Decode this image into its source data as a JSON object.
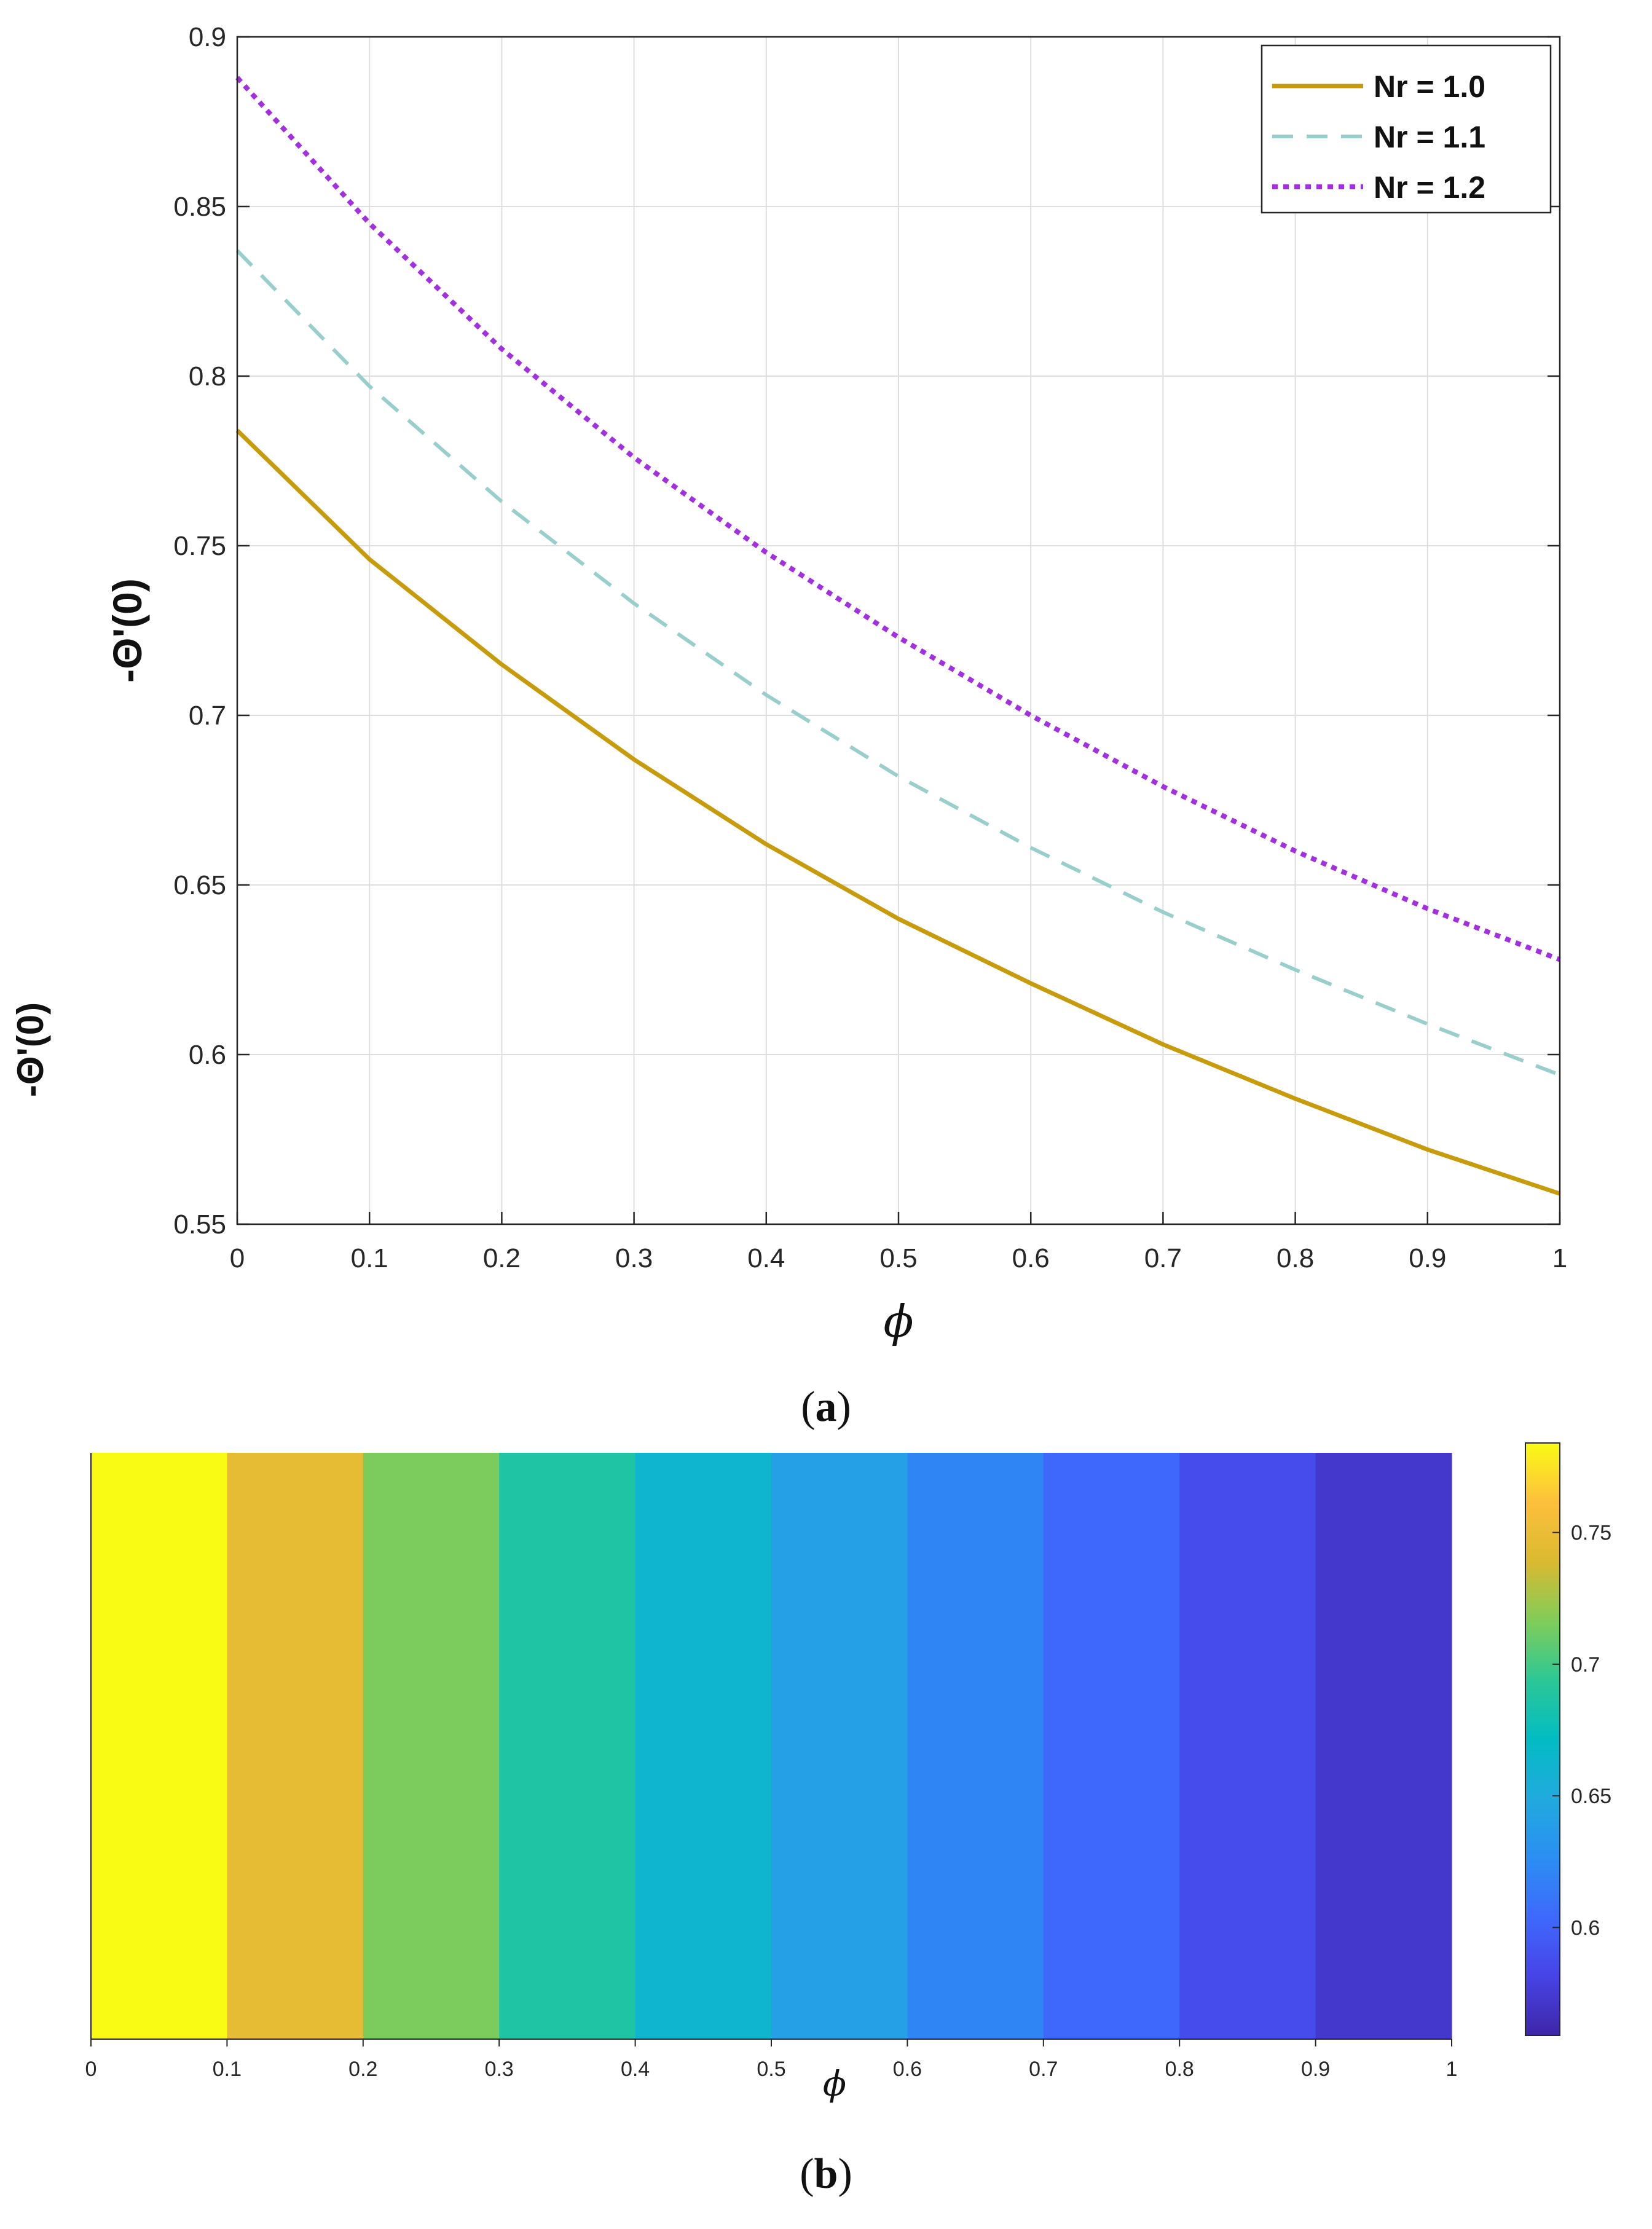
{
  "chart_data": [
    {
      "type": "line",
      "panel_label": "a",
      "xlabel": "ϕ",
      "ylabel": "-Θ'(0)",
      "xlim": [
        0,
        1
      ],
      "ylim": [
        0.55,
        0.9
      ],
      "x_ticks": [
        "0",
        "0.1",
        "0.2",
        "0.3",
        "0.4",
        "0.5",
        "0.6",
        "0.7",
        "0.8",
        "0.9",
        "1"
      ],
      "y_ticks": [
        "0.55",
        "0.6",
        "0.65",
        "0.7",
        "0.75",
        "0.8",
        "0.85",
        "0.9"
      ],
      "grid": true,
      "legend_position": "top-right",
      "x": [
        0,
        0.1,
        0.2,
        0.3,
        0.4,
        0.5,
        0.6,
        0.7,
        0.8,
        0.9,
        1.0
      ],
      "series": [
        {
          "name": "Nr = 1.0",
          "style": "solid",
          "color": "#c89b0c",
          "values": [
            0.784,
            0.746,
            0.715,
            0.687,
            0.662,
            0.64,
            0.621,
            0.603,
            0.587,
            0.572,
            0.559
          ]
        },
        {
          "name": "Nr = 1.1",
          "style": "dashed",
          "color": "#98cfcd",
          "values": [
            0.837,
            0.797,
            0.763,
            0.733,
            0.706,
            0.682,
            0.661,
            0.642,
            0.625,
            0.609,
            0.594
          ]
        },
        {
          "name": "Nr = 1.2",
          "style": "dotted",
          "color": "#a22fe0",
          "values": [
            0.888,
            0.845,
            0.808,
            0.776,
            0.748,
            0.723,
            0.7,
            0.679,
            0.66,
            0.643,
            0.628
          ]
        }
      ]
    },
    {
      "type": "heatmap",
      "panel_label": "b",
      "xlabel": "ϕ",
      "ylabel": "-Θ'(0)",
      "xlim": [
        0,
        1
      ],
      "x_ticks": [
        "0",
        "0.1",
        "0.2",
        "0.3",
        "0.4",
        "0.5",
        "0.6",
        "0.7",
        "0.8",
        "0.9",
        "1"
      ],
      "bands": [
        {
          "x0": 0.0,
          "x1": 0.1,
          "value": 0.784
        },
        {
          "x0": 0.1,
          "x1": 0.2,
          "value": 0.746
        },
        {
          "x0": 0.2,
          "x1": 0.3,
          "value": 0.715
        },
        {
          "x0": 0.3,
          "x1": 0.4,
          "value": 0.687
        },
        {
          "x0": 0.4,
          "x1": 0.5,
          "value": 0.662
        },
        {
          "x0": 0.5,
          "x1": 0.6,
          "value": 0.64
        },
        {
          "x0": 0.6,
          "x1": 0.7,
          "value": 0.621
        },
        {
          "x0": 0.7,
          "x1": 0.8,
          "value": 0.603
        },
        {
          "x0": 0.8,
          "x1": 0.9,
          "value": 0.587
        },
        {
          "x0": 0.9,
          "x1": 1.0,
          "value": 0.572
        }
      ],
      "colorbar": {
        "range": [
          0.559,
          0.784
        ],
        "ticks": [
          "0.6",
          "0.65",
          "0.7",
          "0.75"
        ],
        "colormap": "parula"
      }
    }
  ]
}
